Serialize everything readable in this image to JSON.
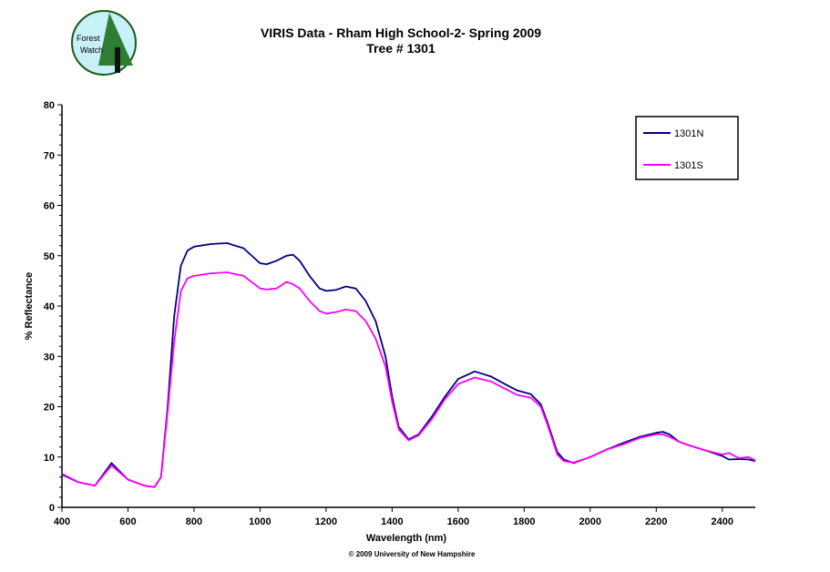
{
  "logo": {
    "text_line1": "Forest",
    "text_line2": "Watch"
  },
  "footer": "© 2009 University of New Hampshire",
  "chart_data": {
    "type": "line",
    "title": "VIRIS Data - Rham High School-2- Spring 2009",
    "subtitle": "Tree # 1301",
    "xlabel": "Wavelength (nm)",
    "ylabel": "% Reflectance",
    "xlim": [
      400,
      2500
    ],
    "ylim": [
      0,
      80
    ],
    "xticks": [
      400,
      600,
      800,
      1000,
      1200,
      1400,
      1600,
      1800,
      2000,
      2200,
      2400
    ],
    "yticks": [
      0,
      10,
      20,
      30,
      40,
      50,
      60,
      70,
      80
    ],
    "grid": false,
    "legend_position": "top-right",
    "x": [
      400,
      450,
      500,
      550,
      600,
      650,
      680,
      700,
      720,
      740,
      760,
      780,
      800,
      850,
      900,
      950,
      1000,
      1020,
      1050,
      1080,
      1100,
      1120,
      1150,
      1180,
      1200,
      1230,
      1260,
      1290,
      1320,
      1350,
      1380,
      1400,
      1420,
      1450,
      1480,
      1520,
      1560,
      1600,
      1650,
      1700,
      1750,
      1780,
      1820,
      1850,
      1870,
      1900,
      1920,
      1950,
      2000,
      2050,
      2100,
      2150,
      2200,
      2220,
      2240,
      2270,
      2300,
      2350,
      2400,
      2420,
      2450,
      2480,
      2500
    ],
    "series": [
      {
        "name": "1301N",
        "color": "#000080",
        "values": [
          6.5,
          5,
          4.3,
          8.8,
          5.5,
          4.3,
          4,
          6,
          20,
          38,
          48,
          51,
          51.8,
          52.3,
          52.5,
          51.5,
          48.5,
          48.3,
          49,
          50,
          50.2,
          49,
          46,
          43.5,
          43,
          43.2,
          43.9,
          43.5,
          41,
          37,
          30,
          22,
          16,
          13.5,
          14.5,
          18,
          22,
          25.5,
          27,
          26,
          24.2,
          23.2,
          22.5,
          20.5,
          17,
          11,
          9.5,
          8.8,
          10,
          11.5,
          12.8,
          14,
          14.8,
          15,
          14.5,
          13,
          12.3,
          11.3,
          10.2,
          9.5,
          9.6,
          9.5,
          9.2
        ]
      },
      {
        "name": "1301S",
        "color": "#FF00FF",
        "values": [
          6.7,
          5,
          4.3,
          8.3,
          5.5,
          4.3,
          4,
          6,
          19,
          33,
          43,
          45.5,
          46,
          46.5,
          46.7,
          46,
          43.5,
          43.3,
          43.5,
          44.8,
          44.3,
          43.5,
          41,
          39,
          38.5,
          38.8,
          39.3,
          39,
          37,
          33.5,
          28,
          21,
          15.5,
          13.3,
          14.3,
          17.5,
          21.5,
          24.5,
          25.8,
          25,
          23.3,
          22.3,
          21.8,
          20,
          16.5,
          10.5,
          9.2,
          8.9,
          10,
          11.5,
          12.5,
          13.8,
          14.5,
          14.5,
          14,
          13,
          12.3,
          11.3,
          10.5,
          10.8,
          9.8,
          10,
          9.3
        ]
      }
    ]
  }
}
